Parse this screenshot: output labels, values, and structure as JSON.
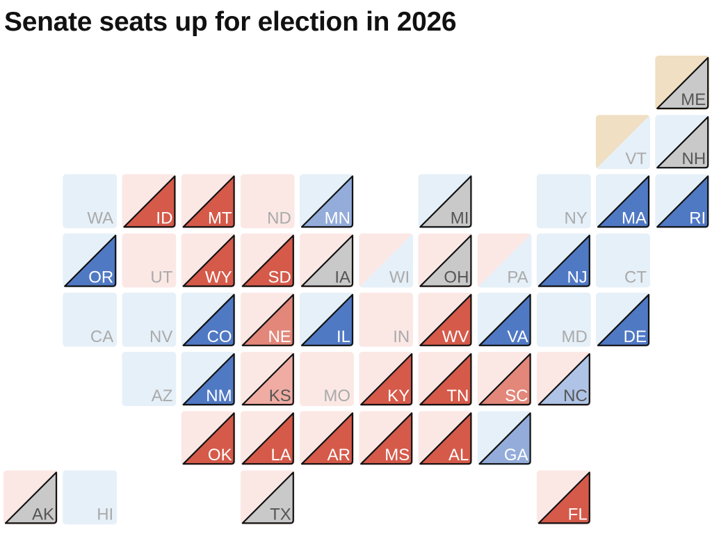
{
  "title": "Senate seats up for election in 2026",
  "colors": {
    "dem_light": "#e6f0f8",
    "rep_light": "#fbe8e5",
    "ind_light": "#f0dfc2",
    "solid_dem": "#5079c4",
    "lean_dem": "#93acda",
    "tilt_dem": "#afc3e6",
    "solid_rep": "#d55a4a",
    "lean_rep": "#e2877a",
    "tilt_rep": "#f0aca3",
    "tossup": "#c9c9c9",
    "outline": "#111111",
    "label_active": "#ffffff",
    "label_inactive": "#aaaaaa",
    "label_tossup": "#555555"
  },
  "states": [
    {
      "abbr": "ME",
      "row": 0,
      "col": 11,
      "party": "ind",
      "race": "tossup"
    },
    {
      "abbr": "VT",
      "row": 1,
      "col": 10,
      "party": "ind_dem",
      "race": ""
    },
    {
      "abbr": "NH",
      "row": 1,
      "col": 11,
      "party": "dem",
      "race": "tossup"
    },
    {
      "abbr": "WA",
      "row": 2,
      "col": 1,
      "party": "dem",
      "race": ""
    },
    {
      "abbr": "ID",
      "row": 2,
      "col": 2,
      "party": "rep",
      "race": "solid_rep"
    },
    {
      "abbr": "MT",
      "row": 2,
      "col": 3,
      "party": "rep",
      "race": "solid_rep"
    },
    {
      "abbr": "ND",
      "row": 2,
      "col": 4,
      "party": "rep",
      "race": ""
    },
    {
      "abbr": "MN",
      "row": 2,
      "col": 5,
      "party": "dem",
      "race": "lean_dem"
    },
    {
      "abbr": "MI",
      "row": 2,
      "col": 7,
      "party": "dem",
      "race": "tossup"
    },
    {
      "abbr": "NY",
      "row": 2,
      "col": 9,
      "party": "dem",
      "race": ""
    },
    {
      "abbr": "MA",
      "row": 2,
      "col": 10,
      "party": "dem",
      "race": "solid_dem"
    },
    {
      "abbr": "RI",
      "row": 2,
      "col": 11,
      "party": "dem",
      "race": "solid_dem"
    },
    {
      "abbr": "OR",
      "row": 3,
      "col": 1,
      "party": "dem",
      "race": "solid_dem"
    },
    {
      "abbr": "UT",
      "row": 3,
      "col": 2,
      "party": "rep",
      "race": ""
    },
    {
      "abbr": "WY",
      "row": 3,
      "col": 3,
      "party": "rep",
      "race": "solid_rep"
    },
    {
      "abbr": "SD",
      "row": 3,
      "col": 4,
      "party": "rep",
      "race": "solid_rep"
    },
    {
      "abbr": "IA",
      "row": 3,
      "col": 5,
      "party": "rep",
      "race": "tossup"
    },
    {
      "abbr": "WI",
      "row": 3,
      "col": 6,
      "party": "split",
      "race": ""
    },
    {
      "abbr": "OH",
      "row": 3,
      "col": 7,
      "party": "rep",
      "race": "tossup"
    },
    {
      "abbr": "PA",
      "row": 3,
      "col": 8,
      "party": "split",
      "race": ""
    },
    {
      "abbr": "NJ",
      "row": 3,
      "col": 9,
      "party": "dem",
      "race": "solid_dem"
    },
    {
      "abbr": "CT",
      "row": 3,
      "col": 10,
      "party": "dem",
      "race": ""
    },
    {
      "abbr": "CA",
      "row": 4,
      "col": 1,
      "party": "dem",
      "race": ""
    },
    {
      "abbr": "NV",
      "row": 4,
      "col": 2,
      "party": "dem",
      "race": ""
    },
    {
      "abbr": "CO",
      "row": 4,
      "col": 3,
      "party": "dem",
      "race": "solid_dem"
    },
    {
      "abbr": "NE",
      "row": 4,
      "col": 4,
      "party": "rep",
      "race": "lean_rep"
    },
    {
      "abbr": "IL",
      "row": 4,
      "col": 5,
      "party": "dem",
      "race": "solid_dem"
    },
    {
      "abbr": "IN",
      "row": 4,
      "col": 6,
      "party": "rep",
      "race": ""
    },
    {
      "abbr": "WV",
      "row": 4,
      "col": 7,
      "party": "rep",
      "race": "solid_rep"
    },
    {
      "abbr": "VA",
      "row": 4,
      "col": 8,
      "party": "dem",
      "race": "solid_dem"
    },
    {
      "abbr": "MD",
      "row": 4,
      "col": 9,
      "party": "dem",
      "race": ""
    },
    {
      "abbr": "DE",
      "row": 4,
      "col": 10,
      "party": "dem",
      "race": "solid_dem"
    },
    {
      "abbr": "AZ",
      "row": 5,
      "col": 2,
      "party": "dem",
      "race": ""
    },
    {
      "abbr": "NM",
      "row": 5,
      "col": 3,
      "party": "dem",
      "race": "solid_dem"
    },
    {
      "abbr": "KS",
      "row": 5,
      "col": 4,
      "party": "rep",
      "race": "tilt_rep"
    },
    {
      "abbr": "MO",
      "row": 5,
      "col": 5,
      "party": "rep",
      "race": ""
    },
    {
      "abbr": "KY",
      "row": 5,
      "col": 6,
      "party": "rep",
      "race": "solid_rep"
    },
    {
      "abbr": "TN",
      "row": 5,
      "col": 7,
      "party": "rep",
      "race": "solid_rep"
    },
    {
      "abbr": "SC",
      "row": 5,
      "col": 8,
      "party": "rep",
      "race": "lean_rep"
    },
    {
      "abbr": "NC",
      "row": 5,
      "col": 9,
      "party": "rep",
      "race": "tilt_dem"
    },
    {
      "abbr": "OK",
      "row": 6,
      "col": 3,
      "party": "rep",
      "race": "solid_rep"
    },
    {
      "abbr": "LA",
      "row": 6,
      "col": 4,
      "party": "rep",
      "race": "solid_rep"
    },
    {
      "abbr": "AR",
      "row": 6,
      "col": 5,
      "party": "rep",
      "race": "solid_rep"
    },
    {
      "abbr": "MS",
      "row": 6,
      "col": 6,
      "party": "rep",
      "race": "solid_rep"
    },
    {
      "abbr": "AL",
      "row": 6,
      "col": 7,
      "party": "rep",
      "race": "solid_rep"
    },
    {
      "abbr": "GA",
      "row": 6,
      "col": 8,
      "party": "dem",
      "race": "lean_dem"
    },
    {
      "abbr": "AK",
      "row": 7,
      "col": 0,
      "party": "rep",
      "race": "tossup"
    },
    {
      "abbr": "HI",
      "row": 7,
      "col": 1,
      "party": "dem",
      "race": ""
    },
    {
      "abbr": "TX",
      "row": 7,
      "col": 4,
      "party": "rep",
      "race": "tossup"
    },
    {
      "abbr": "FL",
      "row": 7,
      "col": 9,
      "party": "rep",
      "race": "solid_rep"
    }
  ]
}
